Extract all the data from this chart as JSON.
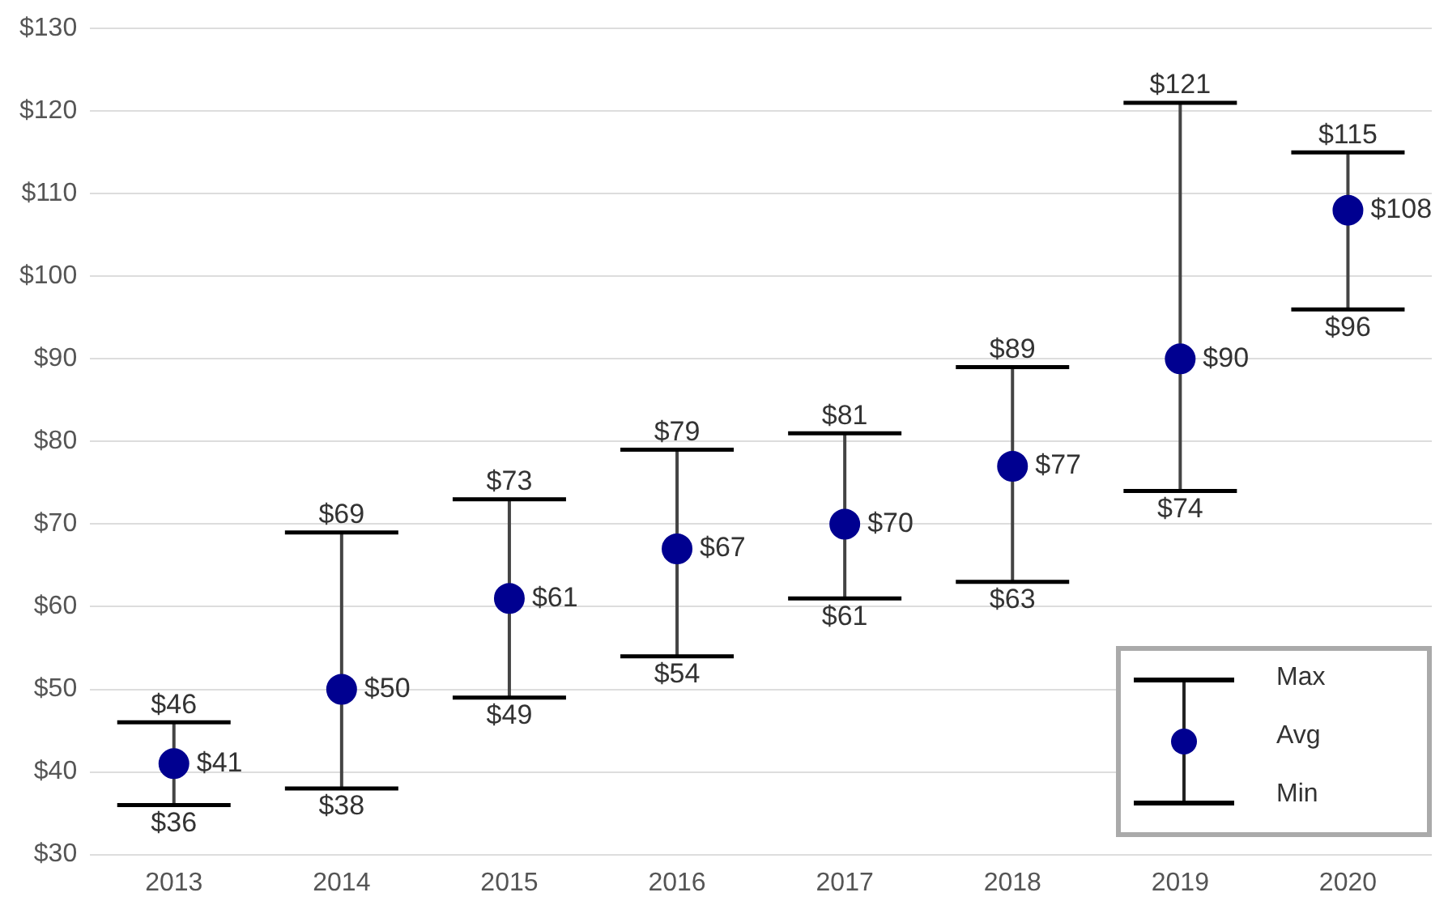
{
  "chart_data": {
    "type": "scatter",
    "categories": [
      "2013",
      "2014",
      "2015",
      "2016",
      "2017",
      "2018",
      "2019",
      "2020"
    ],
    "series": [
      {
        "name": "Avg",
        "color": "#000090",
        "values": [
          41,
          50,
          61,
          67,
          70,
          77,
          90,
          108
        ],
        "errors": [
          [
            36,
            46
          ],
          [
            38,
            69
          ],
          [
            49,
            73
          ],
          [
            54,
            79
          ],
          [
            61,
            81
          ],
          [
            63,
            89
          ],
          [
            74,
            121
          ],
          [
            96,
            115
          ]
        ],
        "value_labels": [
          "$41",
          "$50",
          "$61",
          "$67",
          "$70",
          "$77",
          "$90",
          "$108"
        ]
      }
    ],
    "annotations": [
      {
        "text": "$46",
        "x": "2013",
        "y": 46
      },
      {
        "text": "$36",
        "x": "2013",
        "y": 36
      },
      {
        "text": "$69",
        "x": "2014",
        "y": 69
      },
      {
        "text": "$38",
        "x": "2014",
        "y": 38
      },
      {
        "text": "$73",
        "x": "2015",
        "y": 73
      },
      {
        "text": "$49",
        "x": "2015",
        "y": 49
      },
      {
        "text": "$79",
        "x": "2016",
        "y": 79
      },
      {
        "text": "$54",
        "x": "2016",
        "y": 54
      },
      {
        "text": "$81",
        "x": "2017",
        "y": 81
      },
      {
        "text": "$61",
        "x": "2017",
        "y": 61
      },
      {
        "text": "$89",
        "x": "2018",
        "y": 89
      },
      {
        "text": "$63",
        "x": "2018",
        "y": 63
      },
      {
        "text": "$121",
        "x": "2019",
        "y": 121
      },
      {
        "text": "$74",
        "x": "2019",
        "y": 74
      },
      {
        "text": "$115",
        "x": "2020",
        "y": 115
      },
      {
        "text": "$96",
        "x": "2020",
        "y": 96
      },
      "Max",
      "Min"
    ],
    "ylim": [
      30,
      130
    ],
    "yticks": [
      {
        "value": 30,
        "label": "$30"
      },
      {
        "value": 40,
        "label": "$40"
      },
      {
        "value": 50,
        "label": "$50"
      },
      {
        "value": 60,
        "label": "$60"
      },
      {
        "value": 70,
        "label": "$70"
      },
      {
        "value": 80,
        "label": "$80"
      },
      {
        "value": 90,
        "label": "$90"
      },
      {
        "value": 100,
        "label": "$100"
      },
      {
        "value": 110,
        "label": "$110"
      },
      {
        "value": 120,
        "label": "$120"
      },
      {
        "value": 130,
        "label": "$130"
      }
    ],
    "grid": "y",
    "legend": "bottom right",
    "marker": "circle"
  }
}
